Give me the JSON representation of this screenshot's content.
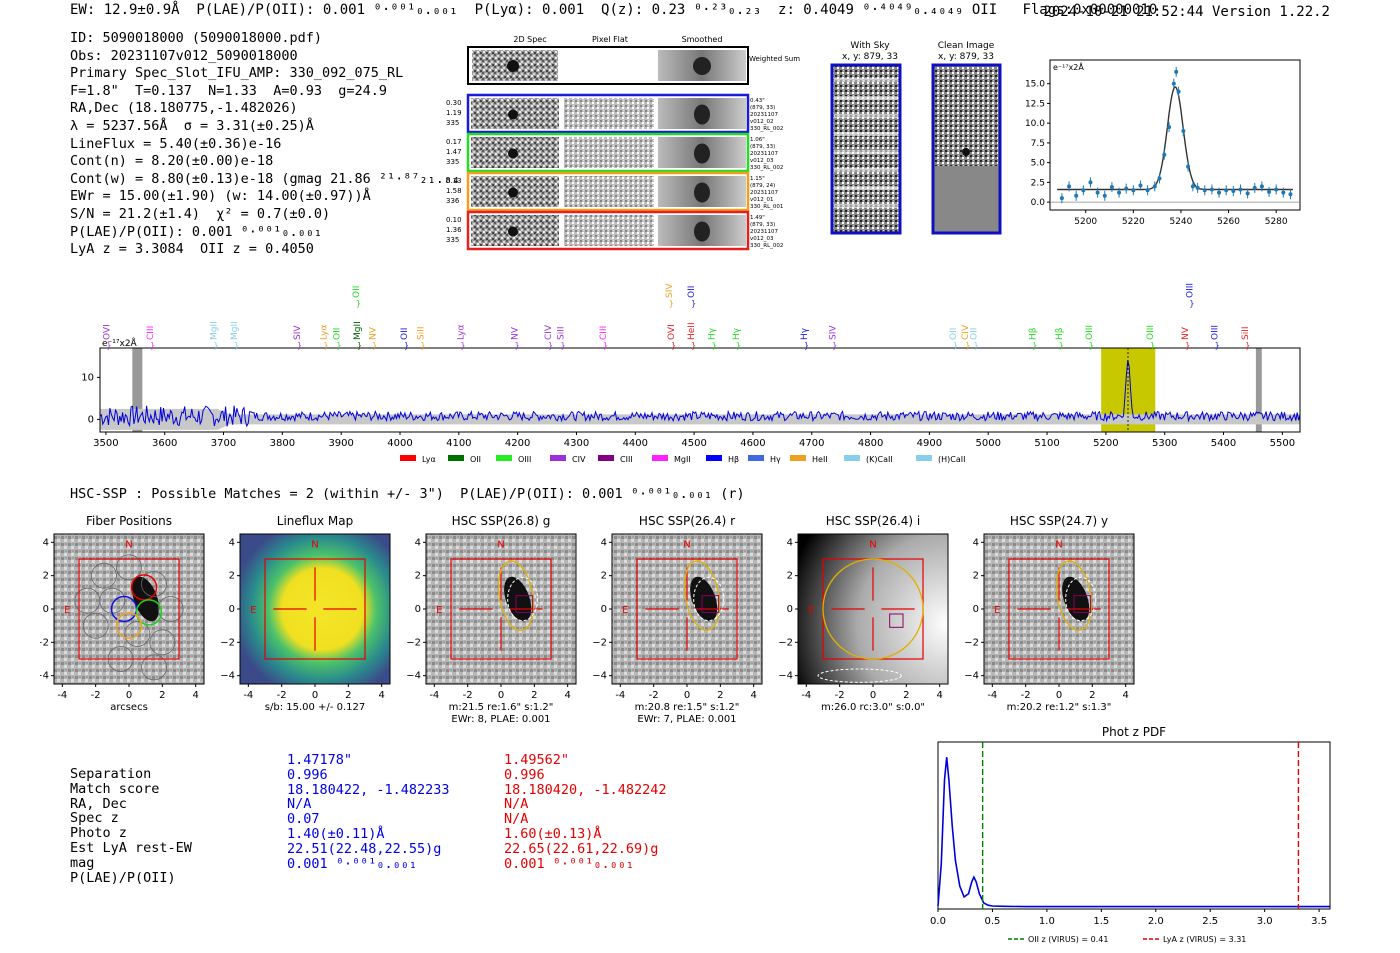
{
  "header": {
    "topline": "EW: 12.9±0.9Å  P(LAE)/P(OII): 0.001 ⁰·⁰⁰¹₀.₀₀₁  P(Lyα): 0.001  Q(z): 0.23 ⁰·²³₀.₂₃  z: 0.4049 ⁰·⁴⁰⁴⁹₀.₄₀₄₉ OII   Flags:0x00000010",
    "timestamp": "2024-10-21 21:52:44",
    "version": "Version 1.22.2"
  },
  "info_lines": [
    "ID: 5090018000 (5090018000.pdf)",
    "Obs: 20231107v012_5090018000",
    "Primary Spec_Slot_IFU_AMP: 330_092_075_RL",
    "F=1.8\"  T=0.137  N=1.33  A=0.93  g=24.9",
    "RA,Dec (18.180775,-1.482026)",
    "λ = 5237.56Å  σ = 3.31(±0.25)Å",
    "LineFlux = 5.40(±0.36)e-16",
    "Cont(n) = 8.20(±0.00)e-18",
    "Cont(w) = 8.80(±0.13)e-18 (gmag 21.86 ²¹·⁸⁷₂₁.₈₄ *)",
    "EWr = 15.00(±1.90) (w: 14.00(±0.97))Å",
    "S/N = 21.2(±1.4)  χ² = 0.7(±0.0)",
    "P(LAE)/P(OII): 0.001 ⁰·⁰⁰¹₀.₀₀₁",
    "LyA z = 3.3084  OII z = 0.4050"
  ],
  "spectra_panel": {
    "col_titles": [
      "2D Spec",
      "Pixel Flat",
      "Smoothed"
    ],
    "weighted_sum_label": "Weighted Sum",
    "rows": [
      {
        "left": [
          "0.30",
          "1.19",
          "335"
        ],
        "right": [
          "0.43\"",
          "(879, 33)",
          "20231107",
          "v012_02",
          "330_RL_002"
        ],
        "color": "#1a1adb"
      },
      {
        "left": [
          "0.17",
          "1.47",
          "335"
        ],
        "right": [
          "1.06\"",
          "(879, 33)",
          "20231107",
          "v012_03",
          "330_RL_002"
        ],
        "color": "#22dd22"
      },
      {
        "left": [
          "0.13",
          "1.58",
          "336"
        ],
        "right": [
          "1.15\"",
          "(879, 24)",
          "20231107",
          "v012_01",
          "330_RL_001"
        ],
        "color": "#f0a020"
      },
      {
        "left": [
          "0.10",
          "1.36",
          "335"
        ],
        "right": [
          "1.49\"",
          "(879, 33)",
          "20231107",
          "v012_03",
          "330_RL_002"
        ],
        "color": "#e62020"
      }
    ],
    "with_sky": {
      "title": "With Sky",
      "subtitle": "x, y: 879, 33"
    },
    "clean_image": {
      "title": "Clean Image",
      "subtitle": "x, y: 879, 33"
    }
  },
  "line_fit_chart": {
    "type": "scatter",
    "unit_label": "e⁻¹⁷x2Å",
    "x": [
      5190,
      5193,
      5196,
      5199,
      5202,
      5205,
      5208,
      5211,
      5214,
      5217,
      5220,
      5223,
      5226,
      5229,
      5231,
      5233,
      5235,
      5237,
      5238,
      5239,
      5241,
      5243,
      5245,
      5247,
      5250,
      5253,
      5256,
      5259,
      5262,
      5265,
      5268,
      5271,
      5274,
      5277,
      5280,
      5283,
      5286
    ],
    "y": [
      0.5,
      2.0,
      0.8,
      1.5,
      2.5,
      1.2,
      0.8,
      1.9,
      1.2,
      1.7,
      1.5,
      2.1,
      1.5,
      2.0,
      3.0,
      6.0,
      9.5,
      15.0,
      16.5,
      14.0,
      9.0,
      4.5,
      2.0,
      1.8,
      1.5,
      1.6,
      1.2,
      1.5,
      1.4,
      1.6,
      1.1,
      1.8,
      2.0,
      1.3,
      1.6,
      1.2,
      1.0
    ],
    "yticks": [
      "0.0",
      "2.5",
      "5.0",
      "7.5",
      "10.0",
      "12.5",
      "15.0"
    ],
    "xticks": [
      "5200",
      "5220",
      "5240",
      "5260",
      "5280"
    ],
    "xlim": [
      5185,
      5290
    ],
    "ylim": [
      -1,
      18
    ]
  },
  "full_spectrum": {
    "type": "line",
    "unit_label": "e⁻¹⁷x2Å",
    "xticks": [
      "3500",
      "3600",
      "3700",
      "3800",
      "3900",
      "4000",
      "4100",
      "4200",
      "4300",
      "4400",
      "4500",
      "4600",
      "4700",
      "4800",
      "4900",
      "5000",
      "5100",
      "5200",
      "5300",
      "5400",
      "5500"
    ],
    "yticks": [
      "0",
      "10"
    ],
    "xlim": [
      3490,
      5530
    ],
    "ylim": [
      -3,
      17
    ],
    "peak_x": 5237.6,
    "line_labels": [
      {
        "t": "OVI",
        "x": 3506,
        "c": "#9b30d9",
        "row": 0
      },
      {
        "t": "CIII",
        "x": 3580,
        "c": "#ff20ff",
        "row": 0
      },
      {
        "t": "MgII",
        "x": 3688,
        "c": "#87ceeb",
        "row": 0
      },
      {
        "t": "MgII",
        "x": 3723,
        "c": "#87ceeb",
        "row": 0
      },
      {
        "t": "SIV",
        "x": 3830,
        "c": "#9b30d9",
        "row": 0
      },
      {
        "t": "Lyα",
        "x": 3875,
        "c": "#f0a020",
        "row": 0
      },
      {
        "t": "OII",
        "x": 3897,
        "c": "#22dd22",
        "row": 0
      },
      {
        "t": "MgII",
        "x": 3932,
        "c": "#006400",
        "row": 0
      },
      {
        "t": "NV",
        "x": 3958,
        "c": "#f0a020",
        "row": 0
      },
      {
        "t": "OII",
        "x": 4012,
        "c": "#1a1adb",
        "row": 0
      },
      {
        "t": "SiII",
        "x": 4040,
        "c": "#f0a020",
        "row": 0
      },
      {
        "t": "Lyα",
        "x": 4108,
        "c": "#9b30d9",
        "row": 0
      },
      {
        "t": "NV",
        "x": 4200,
        "c": "#9b30d9",
        "row": 0
      },
      {
        "t": "CIV",
        "x": 4257,
        "c": "#9b30d9",
        "row": 0
      },
      {
        "t": "SiII",
        "x": 4278,
        "c": "#9b30d9",
        "row": 0
      },
      {
        "t": "CIII",
        "x": 4350,
        "c": "#ff20ff",
        "row": 0
      },
      {
        "t": "OVI",
        "x": 4466,
        "c": "#e62020",
        "row": 0
      },
      {
        "t": "HeII",
        "x": 4500,
        "c": "#e62020",
        "row": 0
      },
      {
        "t": "Hγ",
        "x": 4535,
        "c": "#22dd22",
        "row": 0
      },
      {
        "t": "Hγ",
        "x": 4576,
        "c": "#22dd22",
        "row": 0
      },
      {
        "t": "Hγ",
        "x": 4692,
        "c": "#1a1adb",
        "row": 0
      },
      {
        "t": "SIV",
        "x": 4740,
        "c": "#9b30d9",
        "row": 0
      },
      {
        "t": "OII",
        "x": 4945,
        "c": "#87ceeb",
        "row": 0
      },
      {
        "t": "CIV",
        "x": 4966,
        "c": "#f0a020",
        "row": 0
      },
      {
        "t": "OII",
        "x": 4980,
        "c": "#87ceeb",
        "row": 0
      },
      {
        "t": "Hβ",
        "x": 5080,
        "c": "#22dd22",
        "row": 0
      },
      {
        "t": "Hβ",
        "x": 5125,
        "c": "#22dd22",
        "row": 0
      },
      {
        "t": "OIII",
        "x": 5176,
        "c": "#22dd22",
        "row": 0
      },
      {
        "t": "OIII",
        "x": 5280,
        "c": "#22dd22",
        "row": 0
      },
      {
        "t": "NV",
        "x": 5340,
        "c": "#e62020",
        "row": 0
      },
      {
        "t": "OIII",
        "x": 5390,
        "c": "#1a1adb",
        "row": 0
      },
      {
        "t": "SiII",
        "x": 5442,
        "c": "#e62020",
        "row": 0
      },
      {
        "t": "OII",
        "x": 3930,
        "c": "#22dd22",
        "row": 1
      },
      {
        "t": "SIV",
        "x": 4462,
        "c": "#f0a020",
        "row": 1
      },
      {
        "t": "OII",
        "x": 4500,
        "c": "#1a1adb",
        "row": 1
      },
      {
        "t": "OIII",
        "x": 5347,
        "c": "#1a1adb",
        "row": 1
      }
    ],
    "legend": [
      {
        "t": "Lyα",
        "c": "#ff0000"
      },
      {
        "t": "OII",
        "c": "#007000"
      },
      {
        "t": "OIII",
        "c": "#22ee22"
      },
      {
        "t": "CIV",
        "c": "#9b30d9"
      },
      {
        "t": "CIII",
        "c": "#800080"
      },
      {
        "t": "MgII",
        "c": "#ff20ff"
      },
      {
        "t": "Hβ",
        "c": "#0000ff"
      },
      {
        "t": "Hγ",
        "c": "#4169e1"
      },
      {
        "t": "HeII",
        "c": "#f0a020"
      },
      {
        "t": "(K)CaII",
        "c": "#87ceeb"
      },
      {
        "t": "(H)CaII",
        "c": "#87ceeb"
      }
    ]
  },
  "hsc_header": "HSC-SSP : Possible Matches = 2 (within +/- 3\")  P(LAE)/P(OII): 0.001 ⁰·⁰⁰¹₀.₀₀₁ (r)",
  "cutouts": [
    {
      "title": "Fiber Positions",
      "caption": [
        "arcsecs"
      ],
      "kind": "fiber"
    },
    {
      "title": "Lineflux Map",
      "caption": [
        "s/b: 15.00 +/- 0.127"
      ],
      "kind": "lineflux"
    },
    {
      "title": "HSC SSP(26.8) g",
      "caption": [
        "m:21.5  re:1.6\"  s:1.2\"",
        "EWr: 8, PLAE: 0.001"
      ],
      "kind": "g"
    },
    {
      "title": "HSC SSP(26.4) r",
      "caption": [
        "m:20.8  re:1.5\"  s:1.2\"",
        "EWr: 7, PLAE: 0.001"
      ],
      "kind": "r"
    },
    {
      "title": "HSC SSP(26.4) i",
      "caption": [
        "m:26.0 rc:3.0\"  s:0.0\""
      ],
      "kind": "i"
    },
    {
      "title": "HSC SSP(24.7) y",
      "caption": [
        "m:20.2  re:1.2\"  s:1.3\""
      ],
      "kind": "y"
    }
  ],
  "cutout_ticks": [
    "-4",
    "-2",
    "0",
    "2",
    "4"
  ],
  "cutout_yticks": [
    "4",
    "2",
    "0",
    "−2",
    "−4"
  ],
  "compass": {
    "n": "N",
    "e": "E"
  },
  "match_table": {
    "labels": [
      "Separation",
      "Match score",
      "RA, Dec",
      "Spec z",
      "Photo z",
      "Est LyA rest-EW",
      "mag",
      "P(LAE)/P(OII)"
    ],
    "match1": [
      "1.47178\"",
      "0.996",
      "18.180422, -1.482233",
      "N/A",
      "0.07",
      "1.40(±0.11)Å",
      "22.51(22.48,22.55)g",
      "0.001 ⁰·⁰⁰¹₀.₀₀₁"
    ],
    "match2": [
      "1.49562\"",
      "0.996",
      "18.180420, -1.482242",
      "N/A",
      "N/A",
      "1.60(±0.13)Å",
      "22.65(22.61,22.69)g",
      "0.001 ⁰·⁰⁰¹₀.₀₀₁"
    ]
  },
  "chart_data": {
    "type": "line",
    "title": "Phot z PDF",
    "x": [
      0.0,
      0.03,
      0.06,
      0.08,
      0.1,
      0.13,
      0.16,
      0.2,
      0.24,
      0.28,
      0.31,
      0.33,
      0.35,
      0.38,
      0.42,
      0.46,
      0.5,
      0.6,
      0.8,
      1.0,
      1.5,
      2.0,
      2.5,
      3.0,
      3.5,
      3.6
    ],
    "y": [
      0.02,
      0.3,
      0.85,
      1.0,
      0.85,
      0.55,
      0.32,
      0.15,
      0.08,
      0.1,
      0.18,
      0.21,
      0.18,
      0.1,
      0.04,
      0.025,
      0.02,
      0.018,
      0.016,
      0.016,
      0.016,
      0.016,
      0.016,
      0.016,
      0.016,
      0.016
    ],
    "xticks": [
      "0.0",
      "0.5",
      "1.0",
      "1.5",
      "2.0",
      "2.5",
      "3.0",
      "3.5"
    ],
    "xlim": [
      0,
      3.6
    ],
    "ylim": [
      0,
      1.1
    ],
    "vlines": [
      {
        "x": 0.41,
        "color": "#008000",
        "label": "OII z (VIRUS) = 0.41"
      },
      {
        "x": 3.31,
        "color": "#e60000",
        "label": "LyA z (VIRUS) = 3.31"
      }
    ]
  }
}
